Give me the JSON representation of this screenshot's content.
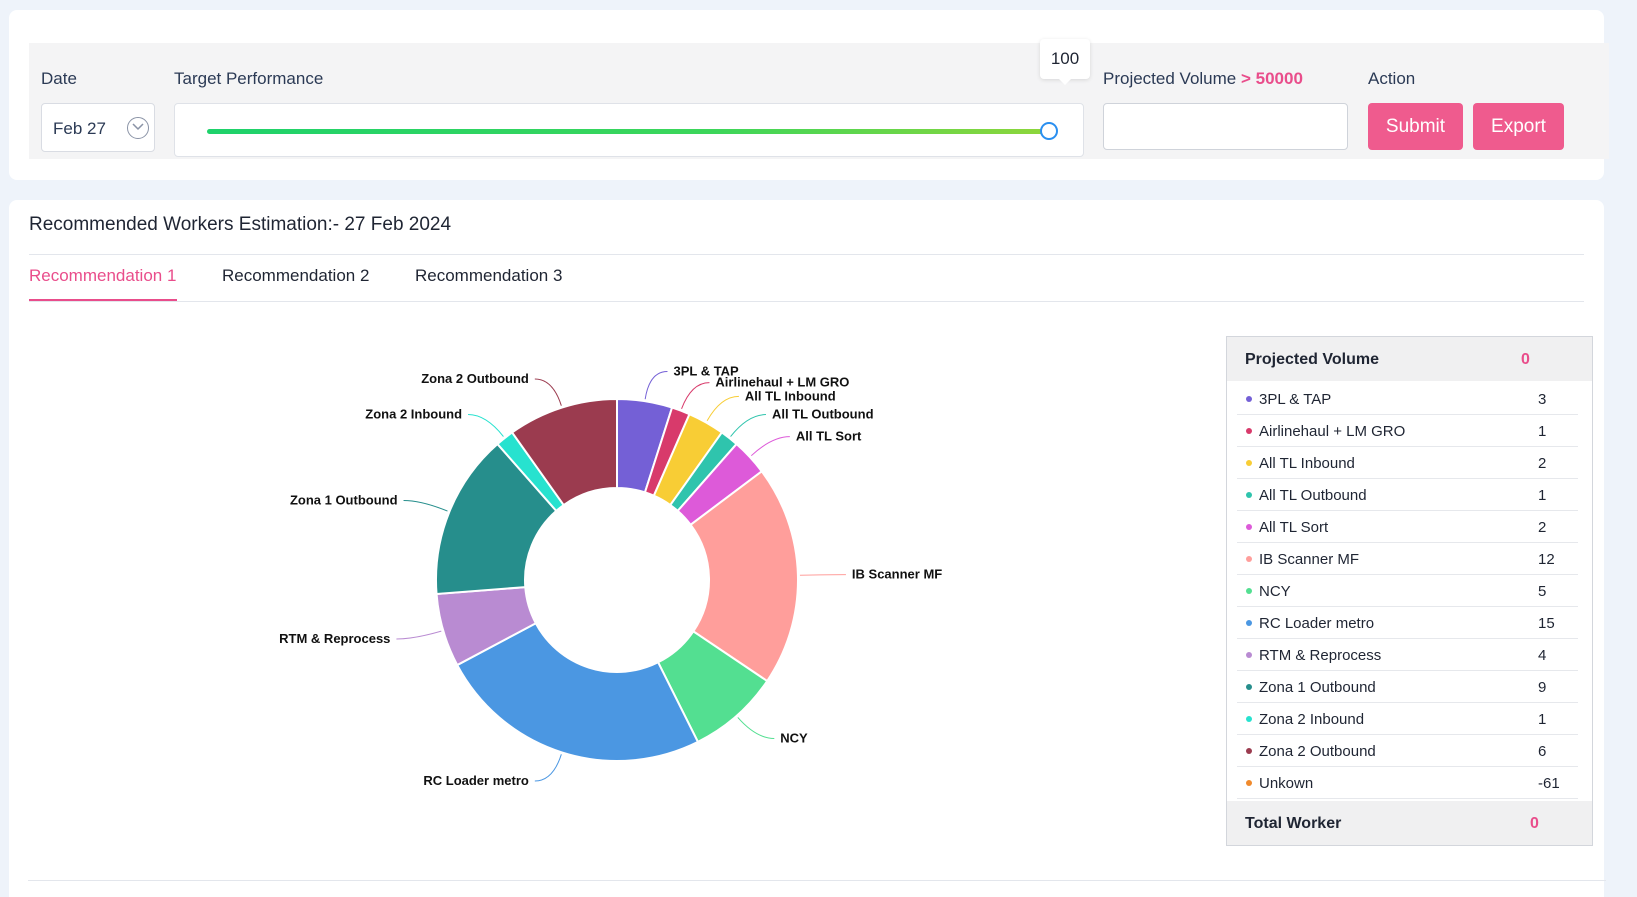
{
  "filters": {
    "date_label": "Date",
    "date_value": "Feb 27",
    "target_label": "Target Performance",
    "target_value": "100",
    "target_fraction": 1.0,
    "volume_label": "Projected Volume",
    "volume_hint": "> 50000",
    "volume_input_value": "",
    "action_label": "Action",
    "submit_label": "Submit",
    "export_label": "Export",
    "accent_color": "#ef5b8e"
  },
  "main": {
    "title": "Recommended Workers Estimation:- 27 Feb 2024",
    "tabs": [
      {
        "label": "Recommendation 1",
        "active": true
      },
      {
        "label": "Recommendation 2",
        "active": false
      },
      {
        "label": "Recommendation 3",
        "active": false
      }
    ]
  },
  "chart_data": {
    "type": "pie",
    "donut": true,
    "title": "",
    "categories": [
      "3PL & TAP",
      "Airlinehaul + LM GRO",
      "All TL Inbound",
      "All TL Outbound",
      "All TL Sort",
      "IB Scanner MF",
      "NCY",
      "RC Loader metro",
      "RTM & Reprocess",
      "Zona 1 Outbound",
      "Zona 2 Inbound",
      "Zona 2 Outbound"
    ],
    "values": [
      3,
      1,
      2,
      1,
      2,
      12,
      5,
      15,
      4,
      9,
      1,
      6
    ],
    "colors": [
      "#7460d6",
      "#d83a6b",
      "#f8cd35",
      "#2fc4ad",
      "#dd5ad9",
      "#ff9e9b",
      "#53df91",
      "#4b97e2",
      "#b98bd2",
      "#268e8c",
      "#27e2cf",
      "#9b3b4f"
    ],
    "labels": "outside with leader lines"
  },
  "table": {
    "header_label": "Projected Volume",
    "header_value": "0",
    "rows": [
      {
        "name": "3PL & TAP",
        "value": "3",
        "color": "#7460d6"
      },
      {
        "name": "Airlinehaul + LM GRO",
        "value": "1",
        "color": "#d83a6b"
      },
      {
        "name": "All TL Inbound",
        "value": "2",
        "color": "#f8cd35"
      },
      {
        "name": "All TL Outbound",
        "value": "1",
        "color": "#2fc4ad"
      },
      {
        "name": "All TL Sort",
        "value": "2",
        "color": "#dd5ad9"
      },
      {
        "name": "IB Scanner MF",
        "value": "12",
        "color": "#ff9e9b"
      },
      {
        "name": "NCY",
        "value": "5",
        "color": "#53df91"
      },
      {
        "name": "RC Loader metro",
        "value": "15",
        "color": "#4b97e2"
      },
      {
        "name": "RTM & Reprocess",
        "value": "4",
        "color": "#b98bd2"
      },
      {
        "name": "Zona 1 Outbound",
        "value": "9",
        "color": "#268e8c"
      },
      {
        "name": "Zona 2 Inbound",
        "value": "1",
        "color": "#27e2cf"
      },
      {
        "name": "Zona 2 Outbound",
        "value": "6",
        "color": "#9b3b4f"
      },
      {
        "name": "Unkown",
        "value": "-61",
        "color": "#f08a2c"
      }
    ],
    "footer_label": "Total Worker",
    "footer_value": "0"
  }
}
